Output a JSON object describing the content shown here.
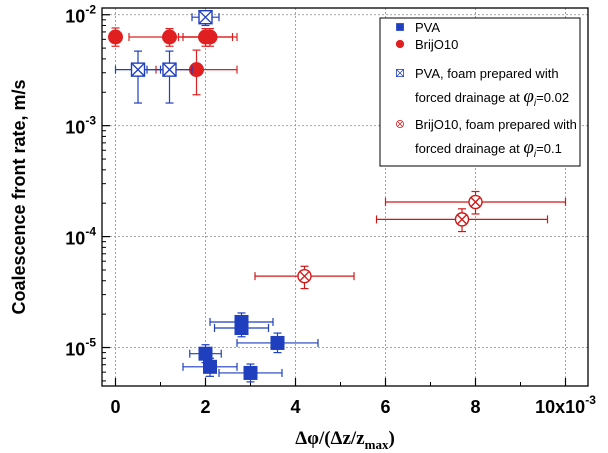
{
  "chart_data": {
    "type": "scatter",
    "xlabel": "Δφ/(Δz/z",
    "xlabel_sub": "max",
    "xlabel_close": ")",
    "ylabel": "Coalescence front rate, m/s",
    "x_multiplier_label": "x10",
    "x_multiplier_exp": "-3",
    "xlim": [
      -0.0003,
      0.0105
    ],
    "ylim": [
      4.5e-06,
      0.0115
    ],
    "y_scale": "log",
    "grid": true,
    "legend_position": "top-right",
    "x_ticks": [
      {
        "value": 0,
        "label": "0"
      },
      {
        "value": 0.002,
        "label": "2"
      },
      {
        "value": 0.004,
        "label": "4"
      },
      {
        "value": 0.006,
        "label": "6"
      },
      {
        "value": 0.008,
        "label": "8"
      },
      {
        "value": 0.01,
        "label": "10"
      }
    ],
    "y_ticks": [
      {
        "value": 1e-05,
        "base": "10",
        "exp": "-5"
      },
      {
        "value": 0.0001,
        "base": "10",
        "exp": "-4"
      },
      {
        "value": 0.001,
        "base": "10",
        "exp": "-3"
      },
      {
        "value": 0.01,
        "base": "10",
        "exp": "-2"
      }
    ],
    "series": [
      {
        "name": "PVA",
        "marker": "square-filled",
        "color": "#1f3fbf",
        "points": [
          {
            "x": 0.002,
            "y": 8.8e-06,
            "xerr": 0.00035,
            "yerr_lo": 1.5e-06,
            "yerr_hi": 1.8e-06
          },
          {
            "x": 0.0021,
            "y": 6.7e-06,
            "xerr": 0.0006,
            "yerr_lo": 1.2e-06,
            "yerr_hi": 1.3e-06
          },
          {
            "x": 0.003,
            "y": 5.9e-06,
            "xerr": 0.0007,
            "yerr_lo": 1e-06,
            "yerr_hi": 1.2e-06
          },
          {
            "x": 0.0028,
            "y": 1.7e-05,
            "xerr": 0.0007,
            "yerr_lo": 3e-06,
            "yerr_hi": 3.5e-06
          },
          {
            "x": 0.0028,
            "y": 1.5e-05,
            "xerr": 0.0006,
            "yerr_lo": 2.5e-06,
            "yerr_hi": 3e-06
          },
          {
            "x": 0.0036,
            "y": 1.1e-05,
            "xerr": 0.0009,
            "yerr_lo": 2e-06,
            "yerr_hi": 2.5e-06
          }
        ]
      },
      {
        "name": "BrijO10",
        "marker": "circle-filled",
        "color": "#e02020",
        "points": [
          {
            "x": 0.0,
            "y": 0.0063,
            "xerr": 0,
            "yerr_lo": 0.0011,
            "yerr_hi": 0.0013
          },
          {
            "x": 0.0012,
            "y": 0.0063,
            "xerr": 0.0009,
            "yerr_lo": 0.0011,
            "yerr_hi": 0.0012
          },
          {
            "x": 0.002,
            "y": 0.0063,
            "xerr": 0.0006,
            "yerr_lo": 0.0011,
            "yerr_hi": 0.0012
          },
          {
            "x": 0.0021,
            "y": 0.0063,
            "xerr": 0.0006,
            "yerr_lo": 0.0011,
            "yerr_hi": 0.0012
          },
          {
            "x": 0.0018,
            "y": 0.0032,
            "xerr": 0.0009,
            "yerr_lo": 0.0013,
            "yerr_hi": 0.0016
          }
        ]
      },
      {
        "name": "PVA, foam prepared with",
        "name_line2_prefix": "forced drainage at ",
        "name_phi": "φ",
        "name_phi_sub": "i",
        "name_line2_value": "=0.02",
        "marker": "square-cross-open",
        "color": "#1f3fbf",
        "points": [
          {
            "x": 0.002,
            "y": 0.0095,
            "xerr": 0.0003,
            "yerr_lo": 0.0015,
            "yerr_hi": 0.001
          },
          {
            "x": 0.0005,
            "y": 0.0032,
            "xerr": 0.0005,
            "yerr_lo": 0.0016,
            "yerr_hi": 0.0015
          },
          {
            "x": 0.0012,
            "y": 0.0032,
            "xerr": 0.0005,
            "yerr_lo": 0.0016,
            "yerr_hi": 0.0015
          }
        ]
      },
      {
        "name": "BrijO10, foam prepared with",
        "name_line2_prefix": "forced drainage at ",
        "name_phi": "φ",
        "name_phi_sub": "i",
        "name_line2_value": "=0.1",
        "marker": "circle-cross-open",
        "color": "#d01818",
        "points": [
          {
            "x": 0.0042,
            "y": 4.4e-05,
            "xerr": 0.0011,
            "yerr_lo": 1e-05,
            "yerr_hi": 1e-05
          },
          {
            "x": 0.0077,
            "y": 0.000143,
            "xerr": 0.0019,
            "yerr_lo": 3.2e-05,
            "yerr_hi": 3.5e-05
          },
          {
            "x": 0.008,
            "y": 0.000205,
            "xerr": 0.002,
            "yerr_lo": 4.5e-05,
            "yerr_hi": 5e-05
          }
        ]
      }
    ]
  }
}
